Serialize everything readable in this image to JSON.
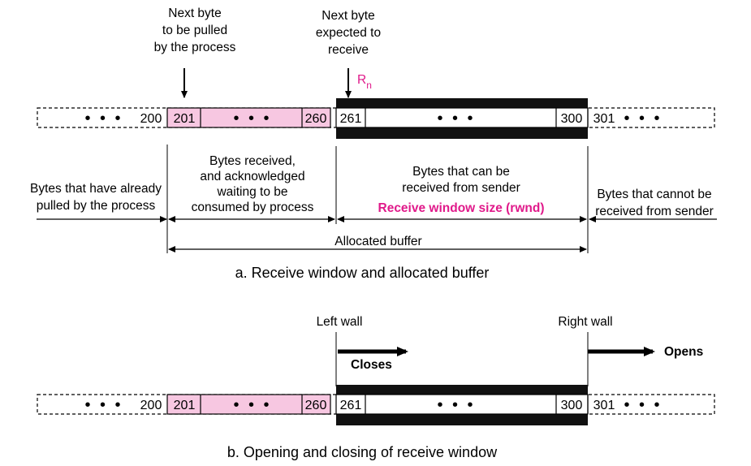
{
  "colors": {
    "accent": "#e0198a",
    "pink_fill": "#f7c7e1",
    "bar_black": "#111111",
    "line": "#000000"
  },
  "diagram_a": {
    "next_byte_pulled": [
      "Next byte",
      "to be pulled",
      "by the process"
    ],
    "next_byte_expected": [
      "Next byte",
      "expected to",
      "receive"
    ],
    "rn_label": "R",
    "rn_sub": "n",
    "cells": {
      "ellipsis": "• • •",
      "c200": "200",
      "c201": "201",
      "c260": "260",
      "c261": "261",
      "c300": "300",
      "c301": "301"
    },
    "already_pulled": [
      "Bytes that have already",
      "pulled by the process"
    ],
    "received_ack": [
      "Bytes received,",
      "and  acknowledged",
      "waiting to be",
      "consumed by process"
    ],
    "can_be_received": [
      "Bytes that can be",
      "received from sender"
    ],
    "rwnd": "Receive window size (rwnd)",
    "cannot_be_received": [
      "Bytes that cannot be",
      "received from sender"
    ],
    "allocated_buffer": "Allocated buffer",
    "caption": "a. Receive window and allocated buffer"
  },
  "diagram_b": {
    "left_wall": "Left wall",
    "right_wall": "Right wall",
    "closes": "Closes",
    "opens": "Opens",
    "caption": "b. Opening and  closing of receive window"
  }
}
